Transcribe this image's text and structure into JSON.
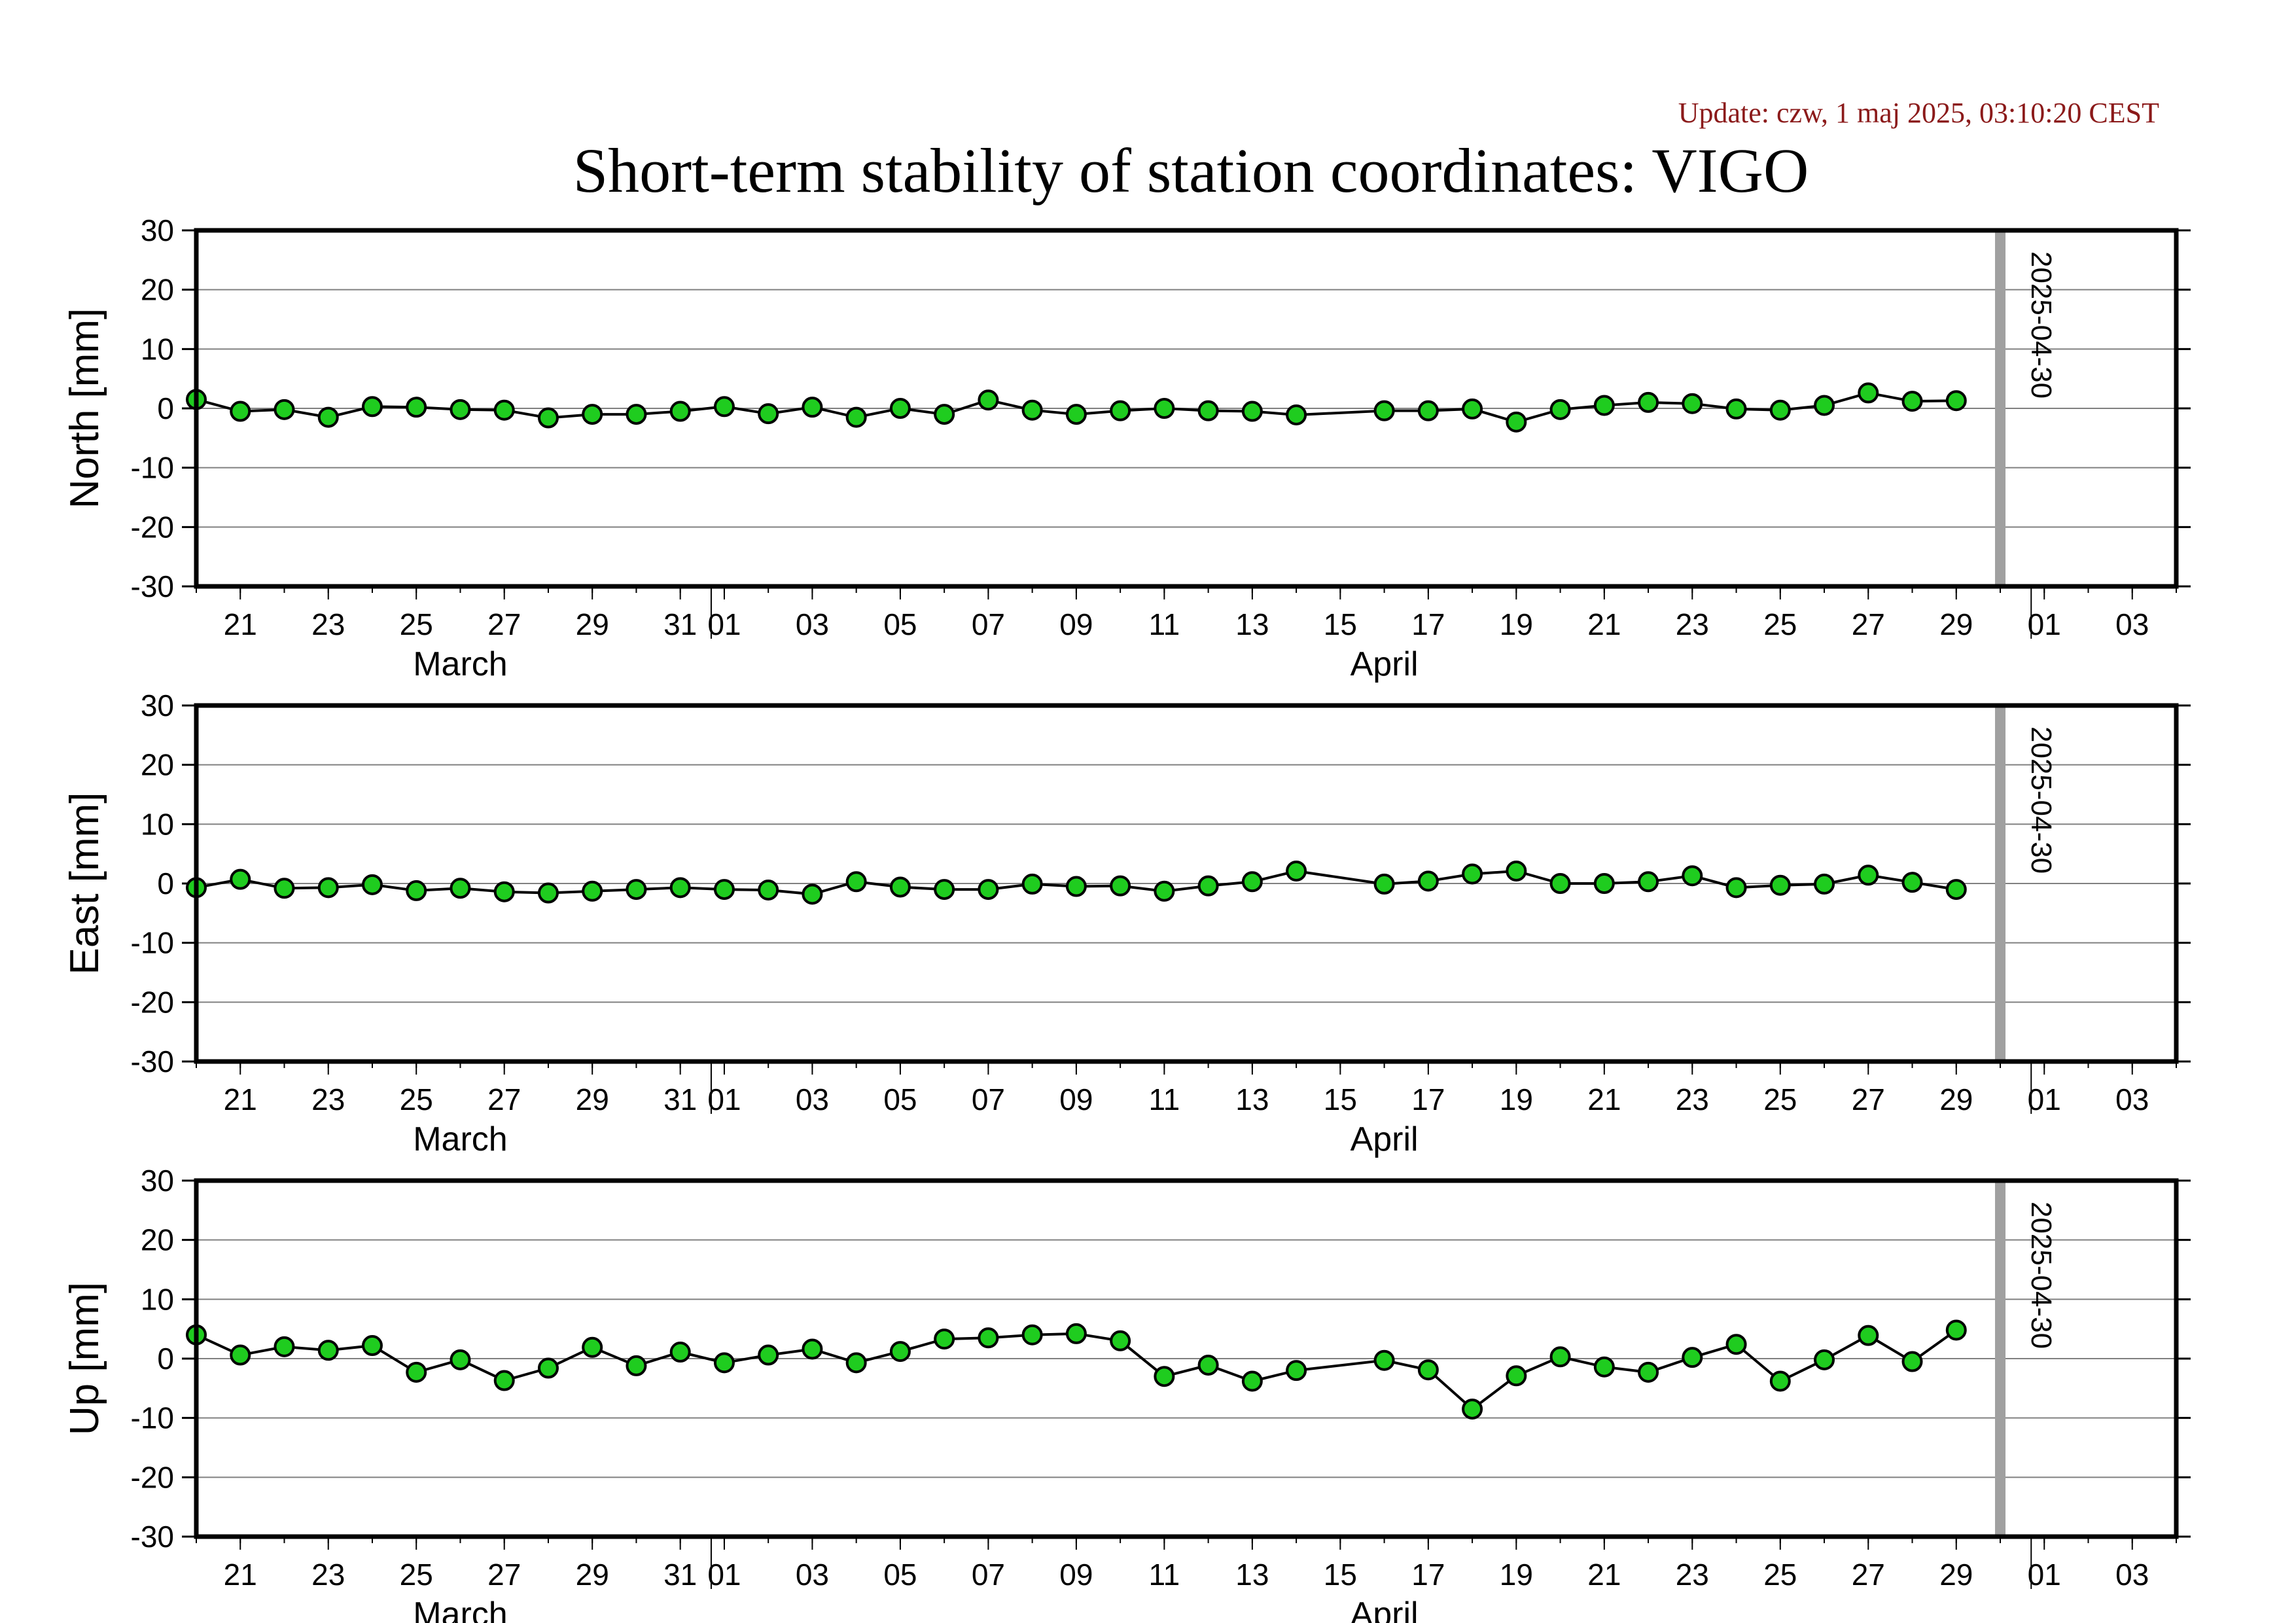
{
  "update_text": "Update: czw, 1 maj 2025, 03:10:20 CEST",
  "title": "Short-term stability of station coordinates: VIGO",
  "colors": {
    "point_fill": "#1fcc1f",
    "point_stroke": "#000000",
    "line": "#000000",
    "marker_line": "#a0a0a0",
    "grid": "#808080",
    "update_text": "#8b1a1a"
  },
  "chart_data": [
    {
      "type": "line",
      "ylabel": "North [mm]",
      "ylim": [
        -30,
        30
      ],
      "yticks": [
        "30",
        "20",
        "10",
        "0",
        "-10",
        "-20",
        "-30"
      ],
      "xlim": [
        "2025-03-20",
        "2025-05-04"
      ],
      "grid": true,
      "marker_date": "2025-04-30",
      "marker_label": "2025-04-30",
      "points": [
        {
          "date": "2025-03-20",
          "value": 1.5
        },
        {
          "date": "2025-03-21",
          "value": -0.5
        },
        {
          "date": "2025-03-22",
          "value": -0.2
        },
        {
          "date": "2025-03-23",
          "value": -1.5
        },
        {
          "date": "2025-03-24",
          "value": 0.3
        },
        {
          "date": "2025-03-25",
          "value": 0.2
        },
        {
          "date": "2025-03-26",
          "value": -0.2
        },
        {
          "date": "2025-03-27",
          "value": -0.3
        },
        {
          "date": "2025-03-28",
          "value": -1.6
        },
        {
          "date": "2025-03-29",
          "value": -1.0
        },
        {
          "date": "2025-03-30",
          "value": -1.0
        },
        {
          "date": "2025-03-31",
          "value": -0.5
        },
        {
          "date": "2025-04-01",
          "value": 0.3
        },
        {
          "date": "2025-04-02",
          "value": -0.9
        },
        {
          "date": "2025-04-03",
          "value": 0.2
        },
        {
          "date": "2025-04-04",
          "value": -1.5
        },
        {
          "date": "2025-04-05",
          "value": 0.0
        },
        {
          "date": "2025-04-06",
          "value": -1.0
        },
        {
          "date": "2025-04-07",
          "value": 1.4
        },
        {
          "date": "2025-04-08",
          "value": -0.3
        },
        {
          "date": "2025-04-09",
          "value": -1.0
        },
        {
          "date": "2025-04-10",
          "value": -0.4
        },
        {
          "date": "2025-04-11",
          "value": 0.0
        },
        {
          "date": "2025-04-12",
          "value": -0.4
        },
        {
          "date": "2025-04-13",
          "value": -0.5
        },
        {
          "date": "2025-04-14",
          "value": -1.1
        },
        {
          "date": "2025-04-16",
          "value": -0.4
        },
        {
          "date": "2025-04-17",
          "value": -0.4
        },
        {
          "date": "2025-04-18",
          "value": -0.1
        },
        {
          "date": "2025-04-19",
          "value": -2.3
        },
        {
          "date": "2025-04-20",
          "value": -0.2
        },
        {
          "date": "2025-04-21",
          "value": 0.5
        },
        {
          "date": "2025-04-22",
          "value": 1.0
        },
        {
          "date": "2025-04-23",
          "value": 0.8
        },
        {
          "date": "2025-04-24",
          "value": -0.1
        },
        {
          "date": "2025-04-25",
          "value": -0.3
        },
        {
          "date": "2025-04-26",
          "value": 0.5
        },
        {
          "date": "2025-04-27",
          "value": 2.6
        },
        {
          "date": "2025-04-28",
          "value": 1.2
        },
        {
          "date": "2025-04-29",
          "value": 1.3
        }
      ]
    },
    {
      "type": "line",
      "ylabel": "East [mm]",
      "ylim": [
        -30,
        30
      ],
      "yticks": [
        "30",
        "20",
        "10",
        "0",
        "-10",
        "-20",
        "-30"
      ],
      "xlim": [
        "2025-03-20",
        "2025-05-04"
      ],
      "grid": true,
      "marker_date": "2025-04-30",
      "marker_label": "2025-04-30",
      "points": [
        {
          "date": "2025-03-20",
          "value": -0.7
        },
        {
          "date": "2025-03-21",
          "value": 0.7
        },
        {
          "date": "2025-03-22",
          "value": -0.8
        },
        {
          "date": "2025-03-23",
          "value": -0.7
        },
        {
          "date": "2025-03-24",
          "value": -0.2
        },
        {
          "date": "2025-03-25",
          "value": -1.2
        },
        {
          "date": "2025-03-26",
          "value": -0.8
        },
        {
          "date": "2025-03-27",
          "value": -1.4
        },
        {
          "date": "2025-03-28",
          "value": -1.6
        },
        {
          "date": "2025-03-29",
          "value": -1.3
        },
        {
          "date": "2025-03-30",
          "value": -1.0
        },
        {
          "date": "2025-03-31",
          "value": -0.7
        },
        {
          "date": "2025-04-01",
          "value": -1.0
        },
        {
          "date": "2025-04-02",
          "value": -1.1
        },
        {
          "date": "2025-04-03",
          "value": -1.8
        },
        {
          "date": "2025-04-04",
          "value": 0.3
        },
        {
          "date": "2025-04-05",
          "value": -0.6
        },
        {
          "date": "2025-04-06",
          "value": -1.0
        },
        {
          "date": "2025-04-07",
          "value": -1.0
        },
        {
          "date": "2025-04-08",
          "value": -0.1
        },
        {
          "date": "2025-04-09",
          "value": -0.5
        },
        {
          "date": "2025-04-10",
          "value": -0.4
        },
        {
          "date": "2025-04-11",
          "value": -1.3
        },
        {
          "date": "2025-04-12",
          "value": -0.4
        },
        {
          "date": "2025-04-13",
          "value": 0.3
        },
        {
          "date": "2025-04-14",
          "value": 2.1
        },
        {
          "date": "2025-04-16",
          "value": -0.1
        },
        {
          "date": "2025-04-17",
          "value": 0.4
        },
        {
          "date": "2025-04-18",
          "value": 1.6
        },
        {
          "date": "2025-04-19",
          "value": 2.1
        },
        {
          "date": "2025-04-20",
          "value": 0.0
        },
        {
          "date": "2025-04-21",
          "value": 0.0
        },
        {
          "date": "2025-04-22",
          "value": 0.3
        },
        {
          "date": "2025-04-23",
          "value": 1.3
        },
        {
          "date": "2025-04-24",
          "value": -0.7
        },
        {
          "date": "2025-04-25",
          "value": -0.3
        },
        {
          "date": "2025-04-26",
          "value": -0.1
        },
        {
          "date": "2025-04-27",
          "value": 1.4
        },
        {
          "date": "2025-04-28",
          "value": 0.2
        },
        {
          "date": "2025-04-29",
          "value": -1.0
        }
      ]
    },
    {
      "type": "line",
      "ylabel": "Up [mm]",
      "ylim": [
        -30,
        30
      ],
      "yticks": [
        "30",
        "20",
        "10",
        "0",
        "-10",
        "-20",
        "-30"
      ],
      "xlim": [
        "2025-03-20",
        "2025-05-04"
      ],
      "grid": true,
      "marker_date": "2025-04-30",
      "marker_label": "2025-04-30",
      "points": [
        {
          "date": "2025-03-20",
          "value": 4.0
        },
        {
          "date": "2025-03-21",
          "value": 0.6
        },
        {
          "date": "2025-03-22",
          "value": 2.0
        },
        {
          "date": "2025-03-23",
          "value": 1.4
        },
        {
          "date": "2025-03-24",
          "value": 2.2
        },
        {
          "date": "2025-03-25",
          "value": -2.3
        },
        {
          "date": "2025-03-26",
          "value": -0.2
        },
        {
          "date": "2025-03-27",
          "value": -3.7
        },
        {
          "date": "2025-03-28",
          "value": -1.6
        },
        {
          "date": "2025-03-29",
          "value": 1.9
        },
        {
          "date": "2025-03-30",
          "value": -1.2
        },
        {
          "date": "2025-03-31",
          "value": 1.1
        },
        {
          "date": "2025-04-01",
          "value": -0.7
        },
        {
          "date": "2025-04-02",
          "value": 0.6
        },
        {
          "date": "2025-04-03",
          "value": 1.6
        },
        {
          "date": "2025-04-04",
          "value": -0.7
        },
        {
          "date": "2025-04-05",
          "value": 1.2
        },
        {
          "date": "2025-04-06",
          "value": 3.3
        },
        {
          "date": "2025-04-07",
          "value": 3.5
        },
        {
          "date": "2025-04-08",
          "value": 4.0
        },
        {
          "date": "2025-04-09",
          "value": 4.2
        },
        {
          "date": "2025-04-10",
          "value": 3.0
        },
        {
          "date": "2025-04-11",
          "value": -3.0
        },
        {
          "date": "2025-04-12",
          "value": -1.1
        },
        {
          "date": "2025-04-13",
          "value": -3.8
        },
        {
          "date": "2025-04-14",
          "value": -2.0
        },
        {
          "date": "2025-04-16",
          "value": -0.3
        },
        {
          "date": "2025-04-17",
          "value": -1.9
        },
        {
          "date": "2025-04-18",
          "value": -8.5
        },
        {
          "date": "2025-04-19",
          "value": -2.9
        },
        {
          "date": "2025-04-20",
          "value": 0.3
        },
        {
          "date": "2025-04-21",
          "value": -1.4
        },
        {
          "date": "2025-04-22",
          "value": -2.3
        },
        {
          "date": "2025-04-23",
          "value": 0.2
        },
        {
          "date": "2025-04-24",
          "value": 2.4
        },
        {
          "date": "2025-04-25",
          "value": -3.8
        },
        {
          "date": "2025-04-26",
          "value": -0.2
        },
        {
          "date": "2025-04-27",
          "value": 3.9
        },
        {
          "date": "2025-04-28",
          "value": -0.5
        },
        {
          "date": "2025-04-29",
          "value": 4.8
        }
      ]
    }
  ],
  "x_axis": {
    "tick_labels": [
      {
        "date": "2025-03-21",
        "label": "21"
      },
      {
        "date": "2025-03-23",
        "label": "23"
      },
      {
        "date": "2025-03-25",
        "label": "25"
      },
      {
        "date": "2025-03-27",
        "label": "27"
      },
      {
        "date": "2025-03-29",
        "label": "29"
      },
      {
        "date": "2025-03-31",
        "label": "31"
      },
      {
        "date": "2025-04-01",
        "label": "01"
      },
      {
        "date": "2025-04-03",
        "label": "03"
      },
      {
        "date": "2025-04-05",
        "label": "05"
      },
      {
        "date": "2025-04-07",
        "label": "07"
      },
      {
        "date": "2025-04-09",
        "label": "09"
      },
      {
        "date": "2025-04-11",
        "label": "11"
      },
      {
        "date": "2025-04-13",
        "label": "13"
      },
      {
        "date": "2025-04-15",
        "label": "15"
      },
      {
        "date": "2025-04-17",
        "label": "17"
      },
      {
        "date": "2025-04-19",
        "label": "19"
      },
      {
        "date": "2025-04-21",
        "label": "21"
      },
      {
        "date": "2025-04-23",
        "label": "23"
      },
      {
        "date": "2025-04-25",
        "label": "25"
      },
      {
        "date": "2025-04-27",
        "label": "27"
      },
      {
        "date": "2025-04-29",
        "label": "29"
      },
      {
        "date": "2025-05-01",
        "label": "01"
      },
      {
        "date": "2025-05-03",
        "label": "03"
      }
    ],
    "month_labels": [
      {
        "date": "2025-03-26",
        "label": "March"
      },
      {
        "date": "2025-04-16",
        "label": "April"
      }
    ],
    "month_boundaries": [
      "2025-04-01",
      "2025-05-01"
    ]
  }
}
